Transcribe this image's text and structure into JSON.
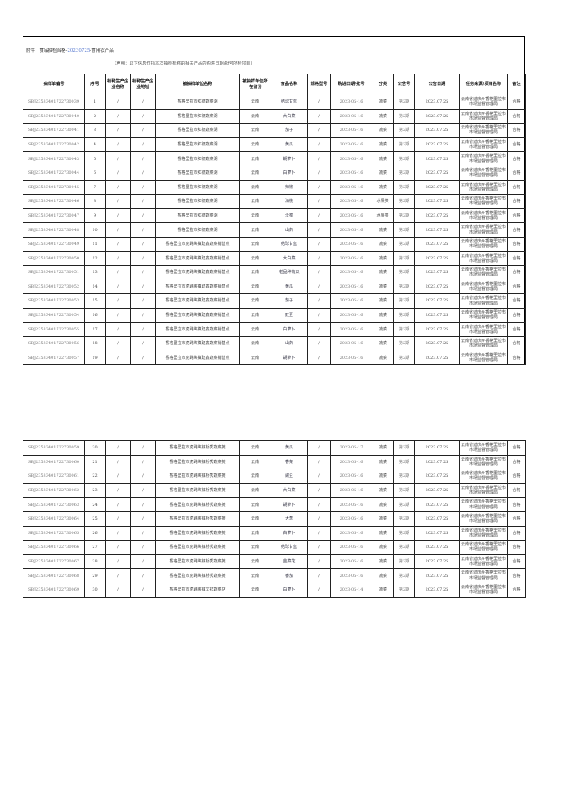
{
  "title_prefix": "附件：食品抽检合格-",
  "title_date": "20230725",
  "title_suffix": "-食用农产品",
  "note": "（声明：以下信息仅指本次抽检标称的相关产品的购进日期/批号所检项目）",
  "headers": [
    "抽样单编号",
    "序号",
    "标称生产企业名称",
    "标称生产企业地址",
    "被抽样单位名称",
    "被抽样单位所在省份",
    "食品名称",
    "规格型号",
    "购进日期/批号",
    "分类",
    "公告号",
    "公告日期",
    "任务来源/项目名称",
    "备注"
  ],
  "rows": [
    {
      "code": "SBJ23533401722730039",
      "no": "1",
      "mfr": "/",
      "addr": "/",
      "unit": "香格里拉市红德蔬菜湖",
      "prov": "云南",
      "food": "结球甘蓝",
      "spec": "/",
      "date": "2023-05-16",
      "cat": "蔬菜",
      "pub": "第2期",
      "pubdate": "2023.07.25",
      "task": "云南省迪庆州香格里拉市市场监督管理局",
      "remark": "合格"
    },
    {
      "code": "SBJ23533401722730040",
      "no": "2",
      "mfr": "/",
      "addr": "/",
      "unit": "香格里拉市红德蔬菜湖",
      "prov": "云南",
      "food": "大白菜",
      "spec": "/",
      "date": "2023-05-16",
      "cat": "蔬菜",
      "pub": "第2期",
      "pubdate": "2023.07.25",
      "task": "云南省迪庆州香格里拉市市场监督管理局",
      "remark": "合格"
    },
    {
      "code": "SBJ23533401722730041",
      "no": "3",
      "mfr": "/",
      "addr": "/",
      "unit": "香格里拉市红德蔬菜湖",
      "prov": "云南",
      "food": "茄子",
      "spec": "/",
      "date": "2023-05-16",
      "cat": "蔬菜",
      "pub": "第2期",
      "pubdate": "2023.07.25",
      "task": "云南省迪庆州香格里拉市市场监督管理局",
      "remark": "合格"
    },
    {
      "code": "SBJ23533401722730042",
      "no": "4",
      "mfr": "/",
      "addr": "/",
      "unit": "香格里拉市红德蔬菜湖",
      "prov": "云南",
      "food": "黄瓜",
      "spec": "/",
      "date": "2023-05-16",
      "cat": "蔬菜",
      "pub": "第2期",
      "pubdate": "2023.07.25",
      "task": "云南省迪庆州香格里拉市市场监督管理局",
      "remark": "合格"
    },
    {
      "code": "SBJ23533401722730043",
      "no": "5",
      "mfr": "/",
      "addr": "/",
      "unit": "香格里拉市红德蔬菜湖",
      "prov": "云南",
      "food": "胡萝卜",
      "spec": "/",
      "date": "2023-05-16",
      "cat": "蔬菜",
      "pub": "第2期",
      "pubdate": "2023.07.25",
      "task": "云南省迪庆州香格里拉市市场监督管理局",
      "remark": "合格"
    },
    {
      "code": "SBJ23533401722730044",
      "no": "6",
      "mfr": "/",
      "addr": "/",
      "unit": "香格里拉市红德蔬菜湖",
      "prov": "云南",
      "food": "白萝卜",
      "spec": "/",
      "date": "2023-05-16",
      "cat": "蔬菜",
      "pub": "第2期",
      "pubdate": "2023.07.25",
      "task": "云南省迪庆州香格里拉市市场监督管理局",
      "remark": "合格"
    },
    {
      "code": "SBJ23533401722730045",
      "no": "7",
      "mfr": "/",
      "addr": "/",
      "unit": "香格里拉市红德蔬菜湖",
      "prov": "云南",
      "food": "辣椒",
      "spec": "/",
      "date": "2023-05-16",
      "cat": "蔬菜",
      "pub": "第2期",
      "pubdate": "2023.07.25",
      "task": "云南省迪庆州香格里拉市市场监督管理局",
      "remark": "合格"
    },
    {
      "code": "SBJ23533401722730046",
      "no": "8",
      "mfr": "/",
      "addr": "/",
      "unit": "香格里拉市红德蔬菜湖",
      "prov": "云南",
      "food": "油桃",
      "spec": "/",
      "date": "2023-05-16",
      "cat": "水果类",
      "pub": "第2期",
      "pubdate": "2023.07.25",
      "task": "云南省迪庆州香格里拉市市场监督管理局",
      "remark": "合格"
    },
    {
      "code": "SBJ23533401722730047",
      "no": "9",
      "mfr": "/",
      "addr": "/",
      "unit": "香格里拉市红德蔬菜湖",
      "prov": "云南",
      "food": "沃柑",
      "spec": "/",
      "date": "2023-05-16",
      "cat": "水果类",
      "pub": "第2期",
      "pubdate": "2023.07.25",
      "task": "云南省迪庆州香格里拉市市场监督管理局",
      "remark": "合格"
    },
    {
      "code": "SBJ23533401722730048",
      "no": "10",
      "mfr": "/",
      "addr": "/",
      "unit": "香格里拉市红德蔬菜湖",
      "prov": "云南",
      "food": "山药",
      "spec": "/",
      "date": "2023-05-16",
      "cat": "蔬菜",
      "pub": "第2期",
      "pubdate": "2023.07.25",
      "task": "云南省迪庆州香格里拉市市场监督管理局",
      "remark": "合格"
    },
    {
      "code": "SBJ23533401722730049",
      "no": "11",
      "mfr": "/",
      "addr": "/",
      "unit": "香格里拉市虎跳峡镇建鑫蔬菜销售点",
      "prov": "云南",
      "food": "结球甘蓝",
      "spec": "/",
      "date": "2023-05-16",
      "cat": "蔬菜",
      "pub": "第2期",
      "pubdate": "2023.07.25",
      "task": "云南省迪庆州香格里拉市市场监督管理局",
      "remark": "合格"
    },
    {
      "code": "SBJ23533401722730050",
      "no": "12",
      "mfr": "/",
      "addr": "/",
      "unit": "香格里拉市虎跳峡镇建鑫蔬菜销售点",
      "prov": "云南",
      "food": "大白菜",
      "spec": "/",
      "date": "2023-05-16",
      "cat": "蔬菜",
      "pub": "第2期",
      "pubdate": "2023.07.25",
      "task": "云南省迪庆州香格里拉市市场监督管理局",
      "remark": "合格"
    },
    {
      "code": "SBJ23533401722730051",
      "no": "13",
      "mfr": "/",
      "addr": "/",
      "unit": "香格里拉市虎跳峡镇建鑫蔬菜销售点",
      "prov": "云南",
      "food": "老品种南瓜",
      "spec": "/",
      "date": "2023-05-16",
      "cat": "蔬菜",
      "pub": "第2期",
      "pubdate": "2023.07.25",
      "task": "云南省迪庆州香格里拉市市场监督管理局",
      "remark": "合格"
    },
    {
      "code": "SBJ23533401722730052",
      "no": "14",
      "mfr": "/",
      "addr": "/",
      "unit": "香格里拉市虎跳峡镇建鑫蔬菜销售点",
      "prov": "云南",
      "food": "黄瓜",
      "spec": "/",
      "date": "2023-05-16",
      "cat": "蔬菜",
      "pub": "第2期",
      "pubdate": "2023.07.25",
      "task": "云南省迪庆州香格里拉市市场监督管理局",
      "remark": "合格"
    },
    {
      "code": "SBJ23533401722730053",
      "no": "15",
      "mfr": "/",
      "addr": "/",
      "unit": "香格里拉市虎跳峡镇建鑫蔬菜销售点",
      "prov": "云南",
      "food": "茄子",
      "spec": "/",
      "date": "2023-05-16",
      "cat": "蔬菜",
      "pub": "第2期",
      "pubdate": "2023.07.25",
      "task": "云南省迪庆州香格里拉市市场监督管理局",
      "remark": "合格"
    },
    {
      "code": "SBJ23533401722730054",
      "no": "16",
      "mfr": "/",
      "addr": "/",
      "unit": "香格里拉市虎跳峡镇建鑫蔬菜销售点",
      "prov": "云南",
      "food": "豇豆",
      "spec": "/",
      "date": "2023-05-16",
      "cat": "蔬菜",
      "pub": "第2期",
      "pubdate": "2023.07.25",
      "task": "云南省迪庆州香格里拉市市场监督管理局",
      "remark": "合格"
    },
    {
      "code": "SBJ23533401722730055",
      "no": "17",
      "mfr": "/",
      "addr": "/",
      "unit": "香格里拉市虎跳峡镇建鑫蔬菜销售点",
      "prov": "云南",
      "food": "白萝卜",
      "spec": "/",
      "date": "2023-05-16",
      "cat": "蔬菜",
      "pub": "第2期",
      "pubdate": "2023.07.25",
      "task": "云南省迪庆州香格里拉市市场监督管理局",
      "remark": "合格"
    },
    {
      "code": "SBJ23533401722730056",
      "no": "18",
      "mfr": "/",
      "addr": "/",
      "unit": "香格里拉市虎跳峡镇建鑫蔬菜销售点",
      "prov": "云南",
      "food": "山药",
      "spec": "/",
      "date": "2023-05-16",
      "cat": "蔬菜",
      "pub": "第2期",
      "pubdate": "2023.07.25",
      "task": "云南省迪庆州香格里拉市市场监督管理局",
      "remark": "合格"
    },
    {
      "code": "SBJ23533401722730057",
      "no": "19",
      "mfr": "/",
      "addr": "/",
      "unit": "香格里拉市虎跳峡镇建鑫蔬菜销售点",
      "prov": "云南",
      "food": "胡萝卜",
      "spec": "/",
      "date": "2023-05-16",
      "cat": "蔬菜",
      "pub": "第2期",
      "pubdate": "2023.07.25",
      "task": "云南省迪庆州香格里拉市市场监督管理局",
      "remark": "合格"
    }
  ],
  "rows2": [
    {
      "code": "SBJ23533401722730059",
      "no": "20",
      "mfr": "/",
      "addr": "/",
      "unit": "香格里拉市虎跳峡镇桥秀蔬菜摊",
      "prov": "云南",
      "food": "黄瓜",
      "spec": "/",
      "date": "2023-05-17",
      "cat": "蔬菜",
      "pub": "第2期",
      "pubdate": "2023.07.25",
      "task": "云南省迪庆州香格里拉市市场监督管理局",
      "remark": "合格"
    },
    {
      "code": "SBJ23533401722730060",
      "no": "21",
      "mfr": "/",
      "addr": "/",
      "unit": "香格里拉市虎跳峡镇桥秀蔬菜摊",
      "prov": "云南",
      "food": "香菜",
      "spec": "/",
      "date": "2023-05-16",
      "cat": "蔬菜",
      "pub": "第2期",
      "pubdate": "2023.07.25",
      "task": "云南省迪庆州香格里拉市市场监督管理局",
      "remark": "合格"
    },
    {
      "code": "SBJ23533401722730061",
      "no": "22",
      "mfr": "/",
      "addr": "/",
      "unit": "香格里拉市虎跳峡镇桥秀蔬菜摊",
      "prov": "云南",
      "food": "豌豆",
      "spec": "/",
      "date": "2023-05-16",
      "cat": "蔬菜",
      "pub": "第2期",
      "pubdate": "2023.07.25",
      "task": "云南省迪庆州香格里拉市市场监督管理局",
      "remark": "合格"
    },
    {
      "code": "SBJ23533401722730062",
      "no": "23",
      "mfr": "/",
      "addr": "/",
      "unit": "香格里拉市虎跳峡镇桥秀蔬菜摊",
      "prov": "云南",
      "food": "大白菜",
      "spec": "/",
      "date": "2023-05-16",
      "cat": "蔬菜",
      "pub": "第2期",
      "pubdate": "2023.07.25",
      "task": "云南省迪庆州香格里拉市市场监督管理局",
      "remark": "合格"
    },
    {
      "code": "SBJ23533401722730063",
      "no": "24",
      "mfr": "/",
      "addr": "/",
      "unit": "香格里拉市虎跳峡镇桥秀蔬菜摊",
      "prov": "云南",
      "food": "胡萝卜",
      "spec": "/",
      "date": "2023-05-16",
      "cat": "蔬菜",
      "pub": "第2期",
      "pubdate": "2023.07.25",
      "task": "云南省迪庆州香格里拉市市场监督管理局",
      "remark": "合格"
    },
    {
      "code": "SBJ23533401722730064",
      "no": "25",
      "mfr": "/",
      "addr": "/",
      "unit": "香格里拉市虎跳峡镇桥秀蔬菜摊",
      "prov": "云南",
      "food": "大葱",
      "spec": "/",
      "date": "2023-05-16",
      "cat": "蔬菜",
      "pub": "第2期",
      "pubdate": "2023.07.25",
      "task": "云南省迪庆州香格里拉市市场监督管理局",
      "remark": "合格"
    },
    {
      "code": "SBJ23533401722730065",
      "no": "26",
      "mfr": "/",
      "addr": "/",
      "unit": "香格里拉市虎跳峡镇桥秀蔬菜摊",
      "prov": "云南",
      "food": "白萝卜",
      "spec": "/",
      "date": "2023-05-16",
      "cat": "蔬菜",
      "pub": "第2期",
      "pubdate": "2023.07.25",
      "task": "云南省迪庆州香格里拉市市场监督管理局",
      "remark": "合格"
    },
    {
      "code": "SBJ23533401722730066",
      "no": "27",
      "mfr": "/",
      "addr": "/",
      "unit": "香格里拉市虎跳峡镇桥秀蔬菜摊",
      "prov": "云南",
      "food": "结球甘蓝",
      "spec": "/",
      "date": "2023-05-16",
      "cat": "蔬菜",
      "pub": "第2期",
      "pubdate": "2023.07.25",
      "task": "云南省迪庆州香格里拉市市场监督管理局",
      "remark": "合格"
    },
    {
      "code": "SBJ23533401722730067",
      "no": "28",
      "mfr": "/",
      "addr": "/",
      "unit": "香格里拉市虎跳峡镇桥秀蔬菜摊",
      "prov": "云南",
      "food": "韭菜花",
      "spec": "/",
      "date": "2023-05-16",
      "cat": "蔬菜",
      "pub": "第2期",
      "pubdate": "2023.07.25",
      "task": "云南省迪庆州香格里拉市市场监督管理局",
      "remark": "合格"
    },
    {
      "code": "SBJ23533401722730068",
      "no": "29",
      "mfr": "/",
      "addr": "/",
      "unit": "香格里拉市虎跳峡镇桥秀蔬菜摊",
      "prov": "云南",
      "food": "番茄",
      "spec": "/",
      "date": "2023-05-16",
      "cat": "蔬菜",
      "pub": "第2期",
      "pubdate": "2023.07.25",
      "task": "云南省迪庆州香格里拉市市场监督管理局",
      "remark": "合格"
    },
    {
      "code": "SBJ23533401722730069",
      "no": "30",
      "mfr": "/",
      "addr": "/",
      "unit": "香格里拉市虎跳峡镇文祥蔬菜店",
      "prov": "云南",
      "food": "白萝卜",
      "spec": "/",
      "date": "2023-05-14",
      "cat": "蔬菜",
      "pub": "第2期",
      "pubdate": "2023.07.25",
      "task": "云南省迪庆州香格里拉市市场监督管理局",
      "remark": "合格"
    }
  ]
}
